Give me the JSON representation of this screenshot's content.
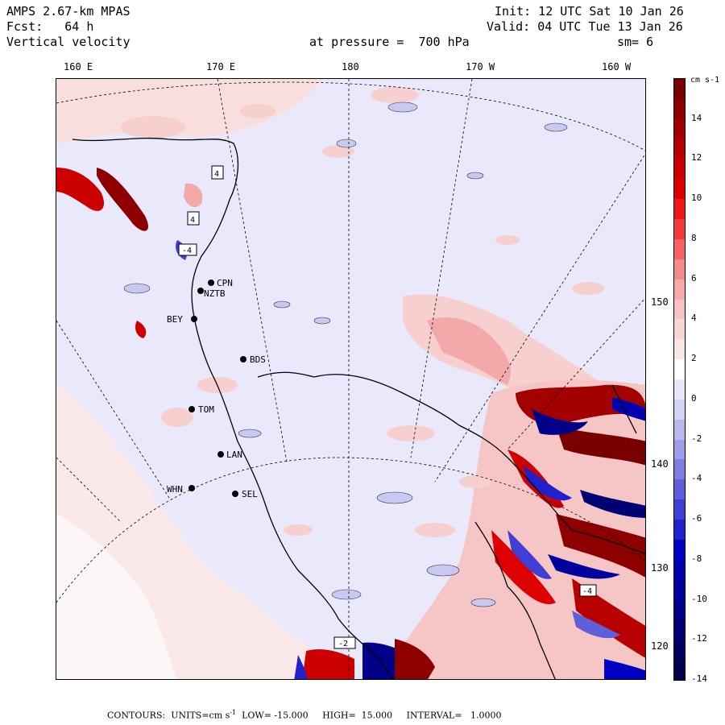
{
  "header": {
    "model": "AMPS 2.67-km MPAS",
    "forecast": "Fcst:   64 h",
    "field": "Vertical velocity",
    "init": "Init: 12 UTC Sat 10 Jan 26",
    "valid": "Valid: 04 UTC Tue 13 Jan 26",
    "level": "at pressure =  700 hPa",
    "smoothing": "sm= 6"
  },
  "lon_labels": [
    "160 E",
    "170 E",
    "180",
    "170 W",
    "160 W"
  ],
  "lat_labels": [
    "150 W",
    "140 W",
    "130 W",
    "120 W"
  ],
  "colorbar": {
    "units": "cm s-1",
    "ticks": [
      "14",
      "12",
      "10",
      "8",
      "6",
      "4",
      "2",
      "0",
      "-2",
      "-4",
      "-6",
      "-8",
      "-10",
      "-12",
      "-14"
    ],
    "colors": [
      "#7a0000",
      "#8e0000",
      "#a30000",
      "#b80000",
      "#cc0000",
      "#de0000",
      "#ee1a1a",
      "#f63a3a",
      "#f86262",
      "#f78a8a",
      "#f5a9a9",
      "#f6c2c2",
      "#f8d6d6",
      "#fbe6e6",
      "#ffffff",
      "#e8e8fb",
      "#d3d3f5",
      "#b9b9ef",
      "#9d9de9",
      "#7f7fe2",
      "#5f5fdb",
      "#3f3fd4",
      "#2020cc",
      "#0000c4",
      "#0000b0",
      "#00009c",
      "#000088",
      "#000074",
      "#000060",
      "#00004c"
    ]
  },
  "stations": [
    {
      "name": "CPN"
    },
    {
      "name": "NZTB"
    },
    {
      "name": "BEY"
    },
    {
      "name": "BDS"
    },
    {
      "name": "TOM"
    },
    {
      "name": "LAN"
    },
    {
      "name": "WHN"
    },
    {
      "name": "SEL"
    }
  ],
  "max_markers": [
    "4",
    "4",
    "-4",
    "-2",
    "-4"
  ],
  "footer": {
    "contours_label": "CONTOURS:",
    "units": "UNITS=cm s",
    "units_sup": "-1",
    "low": "LOW= -15.000",
    "high": "HIGH=  15.000",
    "interval": "INTERVAL=   1.0000"
  }
}
